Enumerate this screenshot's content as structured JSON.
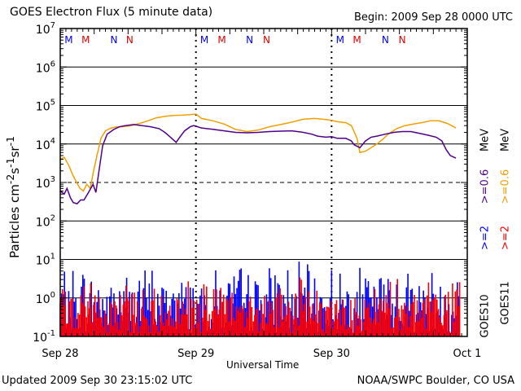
{
  "header": {
    "title": "GOES Electron Flux (5 minute data)",
    "begin": "Begin: 2009 Sep 28 0000 UTC"
  },
  "footer": {
    "updated": "Updated 2009 Sep 30 23:15:02 UTC",
    "credit": "NOAA/SWPC Boulder, CO USA"
  },
  "colors": {
    "goes10_low": "#50008c",
    "goes11_low": "#f0a000",
    "goes10_high": "#0000ff",
    "goes11_high": "#ff0000",
    "marker_M": "#e00000",
    "marker_N": "#0000ff"
  },
  "markers": {
    "row": [
      {
        "text": "M",
        "color": "marker_N"
      },
      {
        "text": "M",
        "color": "marker_M"
      },
      {
        "text": "N",
        "color": "marker_N"
      },
      {
        "text": "N",
        "color": "marker_M"
      },
      {
        "text": "M",
        "color": "marker_N"
      },
      {
        "text": "M",
        "color": "marker_M"
      },
      {
        "text": "N",
        "color": "marker_N"
      },
      {
        "text": "N",
        "color": "marker_M"
      },
      {
        "text": "M",
        "color": "marker_N"
      },
      {
        "text": "M",
        "color": "marker_M"
      },
      {
        "text": "N",
        "color": "marker_N"
      },
      {
        "text": "N",
        "color": "marker_M"
      }
    ],
    "hours": [
      1.5,
      4.5,
      9.5,
      12.3,
      25.5,
      28.6,
      33.5,
      36.5,
      49.5,
      52.5,
      57.5,
      60.5
    ]
  },
  "right_labels": {
    "goes10": "GOES10",
    "goes11": "GOES11",
    "g10_high": ">=2",
    "g11_high": ">=2",
    "g10_low": ">=0.6",
    "g11_low": ">=0.6",
    "unit": "MeV"
  },
  "chart_data": {
    "type": "line",
    "title": "GOES Electron Flux (5 minute data)",
    "xlabel": "Universal Time",
    "ylabel": "Particles cm-2s-1sr-1",
    "x_unit": "hours since 2009 Sep 28 0000 UTC",
    "xlim": [
      0,
      72
    ],
    "ylim": [
      0.1,
      10000000
    ],
    "yscale": "log",
    "x_ticks": [
      {
        "label": "Sep 28",
        "hour": 0
      },
      {
        "label": "Sep 29",
        "hour": 24
      },
      {
        "label": "Sep 30",
        "hour": 48
      },
      {
        "label": "Oct 1",
        "hour": 72
      }
    ],
    "y_ticks": [
      {
        "base": "10",
        "exp": "7",
        "value": 10000000
      },
      {
        "base": "10",
        "exp": "6",
        "value": 1000000
      },
      {
        "base": "10",
        "exp": "5",
        "value": 100000
      },
      {
        "base": "10",
        "exp": "4",
        "value": 10000
      },
      {
        "base": "10",
        "exp": "3",
        "value": 1000
      },
      {
        "base": "10",
        "exp": "2",
        "value": 100
      },
      {
        "base": "10",
        "exp": "1",
        "value": 10
      },
      {
        "base": "10",
        "exp": "0",
        "value": 1
      },
      {
        "base": "10",
        "exp": "-1",
        "value": 0.1
      }
    ],
    "grid_solid": [
      1000000,
      100000,
      10000,
      100,
      10,
      1
    ],
    "grid_dashed": [
      1000
    ],
    "series": [
      {
        "name": "GOES10 >=0.6 MeV",
        "color": "goes10_low",
        "points": [
          [
            0,
            600
          ],
          [
            0.7,
            500
          ],
          [
            1.2,
            700
          ],
          [
            1.8,
            400
          ],
          [
            2.3,
            300
          ],
          [
            3,
            280
          ],
          [
            3.6,
            350
          ],
          [
            4.2,
            350
          ],
          [
            5,
            550
          ],
          [
            5.8,
            900
          ],
          [
            6.3,
            550
          ],
          [
            6.9,
            2200
          ],
          [
            7.5,
            9000
          ],
          [
            8.3,
            18000
          ],
          [
            9.5,
            24000
          ],
          [
            10.5,
            28000
          ],
          [
            11.5,
            30000
          ],
          [
            13,
            32000
          ],
          [
            14.5,
            30000
          ],
          [
            16,
            28000
          ],
          [
            17.5,
            25000
          ],
          [
            18.5,
            20000
          ],
          [
            19.5,
            15000
          ],
          [
            20.5,
            11000
          ],
          [
            21,
            14000
          ],
          [
            22,
            22000
          ],
          [
            23,
            28000
          ],
          [
            23.6,
            30000
          ],
          [
            25,
            26000
          ],
          [
            27,
            24000
          ],
          [
            29,
            22000
          ],
          [
            31,
            20000
          ],
          [
            33,
            19500
          ],
          [
            35,
            20000
          ],
          [
            37,
            21000
          ],
          [
            39,
            21500
          ],
          [
            41,
            22000
          ],
          [
            43,
            20000
          ],
          [
            44.5,
            18000
          ],
          [
            45.5,
            16000
          ],
          [
            47,
            15000
          ],
          [
            48,
            15500
          ],
          [
            49,
            14000
          ],
          [
            50.5,
            14000
          ],
          [
            51.5,
            12000
          ],
          [
            52,
            9500
          ],
          [
            53,
            8000
          ],
          [
            54,
            12000
          ],
          [
            55,
            15000
          ],
          [
            56,
            16000
          ],
          [
            57.5,
            18000
          ],
          [
            59,
            20000
          ],
          [
            60.5,
            21000
          ],
          [
            62,
            21000
          ],
          [
            63.5,
            19000
          ],
          [
            65,
            17000
          ],
          [
            66.5,
            15000
          ],
          [
            67.5,
            12000
          ],
          [
            68.3,
            7000
          ],
          [
            69,
            5000
          ],
          [
            70,
            4300
          ]
        ]
      },
      {
        "name": "GOES11 >=0.6 MeV",
        "color": "goes11_low",
        "points": [
          [
            0,
            4000
          ],
          [
            0.7,
            4500
          ],
          [
            1.5,
            2800
          ],
          [
            2.2,
            1600
          ],
          [
            2.9,
            1000
          ],
          [
            3.5,
            700
          ],
          [
            4.1,
            600
          ],
          [
            4.7,
            900
          ],
          [
            5.3,
            700
          ],
          [
            5.9,
            2000
          ],
          [
            6.5,
            5000
          ],
          [
            7.2,
            14000
          ],
          [
            8,
            22000
          ],
          [
            9,
            26000
          ],
          [
            10,
            28000
          ],
          [
            11,
            28000
          ],
          [
            12.5,
            30000
          ],
          [
            14,
            34000
          ],
          [
            15.5,
            40000
          ],
          [
            17,
            48000
          ],
          [
            18.5,
            52000
          ],
          [
            20,
            55000
          ],
          [
            21.5,
            56000
          ],
          [
            23,
            58000
          ],
          [
            24,
            60000
          ],
          [
            25,
            46000
          ],
          [
            27,
            40000
          ],
          [
            29,
            33000
          ],
          [
            31,
            24000
          ],
          [
            33,
            21000
          ],
          [
            35,
            23000
          ],
          [
            37,
            28000
          ],
          [
            39,
            32000
          ],
          [
            41,
            37000
          ],
          [
            43,
            44000
          ],
          [
            45,
            46000
          ],
          [
            47,
            43000
          ],
          [
            48,
            41000
          ],
          [
            49,
            38000
          ],
          [
            50.5,
            36000
          ],
          [
            51.5,
            30000
          ],
          [
            52.5,
            14000
          ],
          [
            53,
            6000
          ],
          [
            54,
            6500
          ],
          [
            55,
            8000
          ],
          [
            56,
            10000
          ],
          [
            57,
            13000
          ],
          [
            58,
            18000
          ],
          [
            59.5,
            25000
          ],
          [
            61,
            30000
          ],
          [
            62.5,
            33000
          ],
          [
            64,
            36000
          ],
          [
            65.5,
            40000
          ],
          [
            67,
            40000
          ],
          [
            68.5,
            34000
          ],
          [
            70,
            26000
          ]
        ]
      },
      {
        "name": "GOES10 >=2 MeV",
        "color": "goes10_high",
        "range": [
          0.12,
          10
        ]
      },
      {
        "name": "GOES11 >=2 MeV",
        "color": "goes11_high",
        "range": [
          0.12,
          4
        ]
      }
    ]
  }
}
